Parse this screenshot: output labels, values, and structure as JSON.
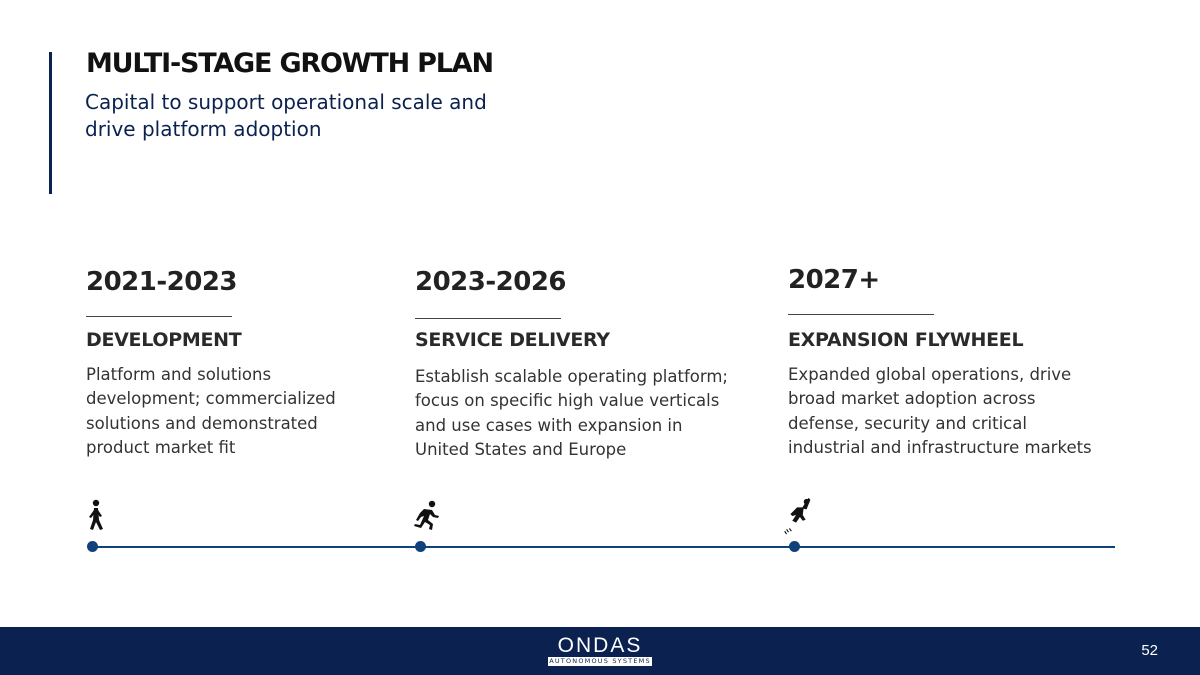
{
  "header": {
    "title": "MULTI-STAGE GROWTH PLAN",
    "subtitle": "Capital to support operational scale and drive platform adoption"
  },
  "stages": [
    {
      "period": "2021-2023",
      "name": "DEVELOPMENT",
      "description": "Platform and solutions development; commercialized solutions and demonstrated product market fit",
      "icon": "walking-person-icon"
    },
    {
      "period": "2023-2026",
      "name": "SERVICE DELIVERY",
      "description": "Establish scalable operating platform; focus on specific high value verticals and use cases with expansion in United States and Europe",
      "icon": "running-person-icon"
    },
    {
      "period": "2027+",
      "name": "EXPANSION FLYWHEEL",
      "description": "Expanded global operations, drive broad market adoption across defense, security and critical industrial and infrastructure markets",
      "icon": "sprinting-person-icon"
    }
  ],
  "footer": {
    "logo_text": "ONDAS",
    "logo_tagline": "AUTONOMOUS SYSTEMS",
    "page_number": "52"
  },
  "colors": {
    "navy": "#0b2150",
    "timeline": "#10427a"
  }
}
